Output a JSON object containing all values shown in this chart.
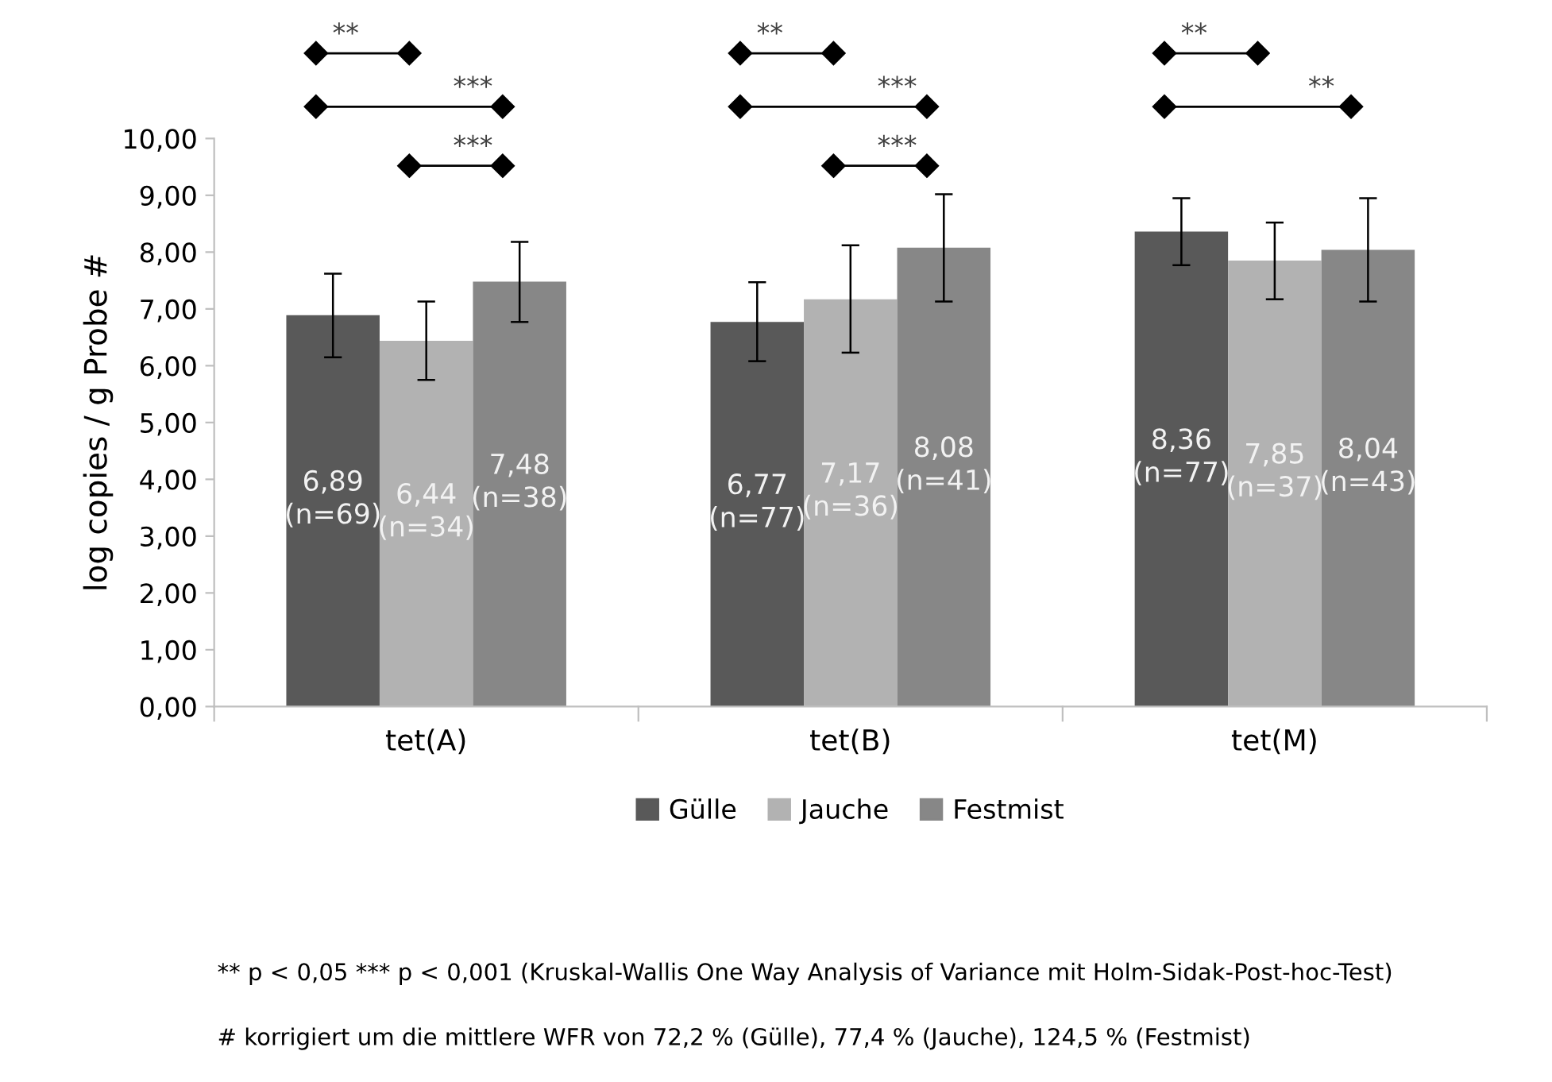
{
  "chart_data": {
    "type": "bar",
    "ylabel": "log copies / g Probe #",
    "categories": [
      "tet(A)",
      "tet(B)",
      "tet(M)"
    ],
    "series": [
      {
        "name": "Gülle",
        "color": "#595959",
        "values": [
          6.89,
          6.77,
          8.36
        ],
        "errors": [
          [
            6.15,
            7.62
          ],
          [
            6.08,
            7.47
          ],
          [
            7.77,
            8.95
          ]
        ],
        "value_labels": [
          "6,89\n(n=69)",
          "6,77\n(n=77)",
          "8,36\n(n=77)"
        ]
      },
      {
        "name": "Jauche",
        "color": "#b2b2b2",
        "values": [
          6.44,
          7.17,
          7.85
        ],
        "errors": [
          [
            5.75,
            7.13
          ],
          [
            6.23,
            8.12
          ],
          [
            7.17,
            8.52
          ]
        ],
        "value_labels": [
          "6,44\n(n=34)",
          "7,17\n(n=36)",
          "7,85\n(n=37)"
        ]
      },
      {
        "name": "Festmist",
        "color": "#878787",
        "values": [
          7.48,
          8.08,
          8.04
        ],
        "errors": [
          [
            6.77,
            8.18
          ],
          [
            7.13,
            9.02
          ],
          [
            7.13,
            8.95
          ]
        ],
        "value_labels": [
          "7,48\n(n=38)",
          "8,08\n(n=41)",
          "8,04\n(n=43)"
        ]
      }
    ],
    "ylim": [
      0,
      10
    ],
    "yticks": [
      {
        "value": 0,
        "label": "0,00"
      },
      {
        "value": 1,
        "label": "1,00"
      },
      {
        "value": 2,
        "label": "2,00"
      },
      {
        "value": 3,
        "label": "3,00"
      },
      {
        "value": 4,
        "label": "4,00"
      },
      {
        "value": 5,
        "label": "5,00"
      },
      {
        "value": 6,
        "label": "6,00"
      },
      {
        "value": 7,
        "label": "7,00"
      },
      {
        "value": 8,
        "label": "8,00"
      },
      {
        "value": 9,
        "label": "9,00"
      },
      {
        "value": 10,
        "label": "10,00"
      }
    ],
    "grid": false,
    "legend": "bottom",
    "annotations": [
      "**",
      "***",
      "***",
      "**",
      "***",
      "***",
      "**",
      "**",
      "** p < 0,05 *** p < 0,001 (Kruskal-Wallis One Way Analysis of Variance mit Holm-Sidak-Post-hoc-Test)",
      "# korrigiert um die mittlere WFR von 72,2 % (Gülle), 77,4 % (Jauche), 124,5 % (Festmist)"
    ]
  }
}
